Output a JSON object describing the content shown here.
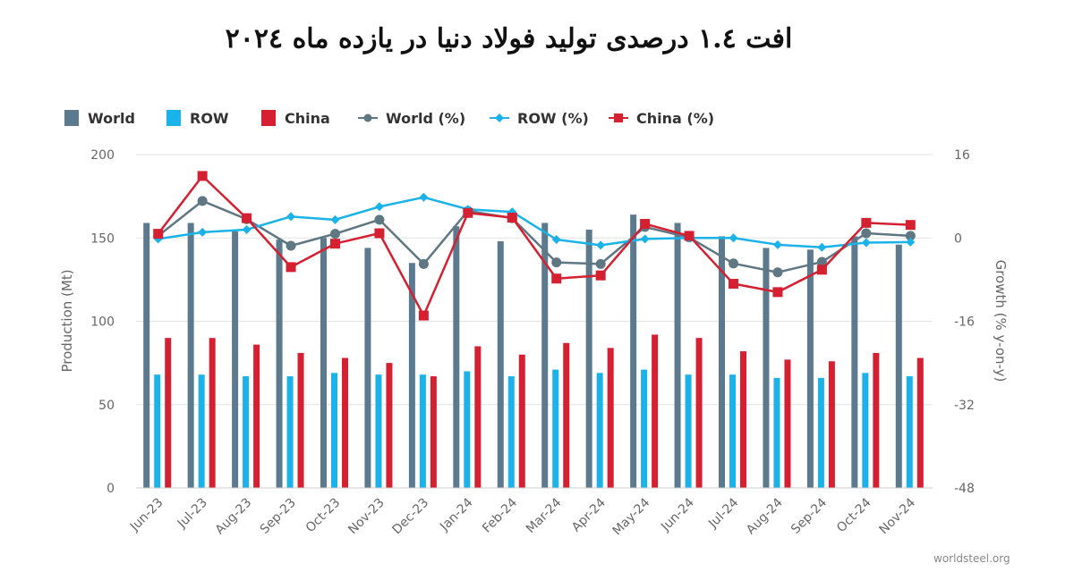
{
  "chart_data": {
    "type": "bar",
    "title": "افت ۱.٤ درصدی تولید فولاد دنیا در یازده ماه ۲۰۲٤",
    "categories": [
      "Jun-23",
      "Jul-23",
      "Aug-23",
      "Sep-23",
      "Oct-23",
      "Nov-23",
      "Dec-23",
      "Jan-24",
      "Feb-24",
      "Mar-24",
      "Apr-24",
      "May-24",
      "Jun-24",
      "Jul-24",
      "Aug-24",
      "Sep-24",
      "Oct-24",
      "Nov-24"
    ],
    "ylabel": "Production (Mt)",
    "y2label": "Growth (% y-on-y)",
    "ylim": [
      0,
      200
    ],
    "y2lim": [
      -48,
      16
    ],
    "yticks": [
      0,
      50,
      100,
      150,
      200
    ],
    "y2ticks": [
      -48,
      -32,
      -16,
      0,
      16
    ],
    "grid": true,
    "legend_position": "top-left",
    "bar_series": [
      {
        "name": "World",
        "color": "#5b7a8e",
        "values": [
          159,
          159,
          154,
          149,
          150,
          144,
          135,
          157,
          148,
          159,
          155,
          164,
          159,
          151,
          144,
          143,
          151,
          146
        ]
      },
      {
        "name": "ROW",
        "color": "#1ab2e8",
        "values": [
          68,
          68,
          67,
          67,
          69,
          68,
          68,
          70,
          67,
          71,
          69,
          71,
          68,
          68,
          66,
          66,
          69,
          67
        ]
      },
      {
        "name": "China",
        "color": "#d42030",
        "values": [
          90,
          90,
          86,
          81,
          78,
          75,
          67,
          85,
          80,
          87,
          84,
          92,
          90,
          82,
          77,
          76,
          81,
          78
        ]
      }
    ],
    "line_series": [
      {
        "name": "World (%)",
        "color": "#5f7683",
        "marker": "circle",
        "values": [
          0.4,
          7.1,
          3.6,
          -1.5,
          0.8,
          3.5,
          -5.0,
          5.2,
          3.8,
          -4.7,
          -5.0,
          2.1,
          0.1,
          -4.9,
          -6.6,
          -4.6,
          0.9,
          0.4
        ]
      },
      {
        "name": "ROW (%)",
        "color": "#1ab2e8",
        "marker": "diamond",
        "values": [
          -0.2,
          1.1,
          1.6,
          4.1,
          3.5,
          6.0,
          7.8,
          5.5,
          5.0,
          -0.3,
          -1.4,
          -0.2,
          0.0,
          0.0,
          -1.3,
          -1.8,
          -0.9,
          -0.8
        ]
      },
      {
        "name": "China (%)",
        "color": "#d42030",
        "marker": "square",
        "values": [
          0.8,
          11.9,
          3.8,
          -5.6,
          -1.1,
          0.9,
          -14.9,
          4.8,
          3.9,
          -7.8,
          -7.2,
          2.7,
          0.4,
          -8.8,
          -10.4,
          -6.1,
          2.9,
          2.5
        ]
      }
    ]
  },
  "legend": {
    "items": [
      {
        "label": "World",
        "color": "#5b7a8e",
        "kind": "bar"
      },
      {
        "label": "ROW",
        "color": "#1ab2e8",
        "kind": "bar"
      },
      {
        "label": "China",
        "color": "#d42030",
        "kind": "bar"
      },
      {
        "label": "World (%)",
        "color": "#5f7683",
        "kind": "line-circle"
      },
      {
        "label": "ROW (%)",
        "color": "#1ab2e8",
        "kind": "line-diamond"
      },
      {
        "label": "China (%)",
        "color": "#d42030",
        "kind": "line-square"
      }
    ]
  },
  "source": "worldsteel.org"
}
